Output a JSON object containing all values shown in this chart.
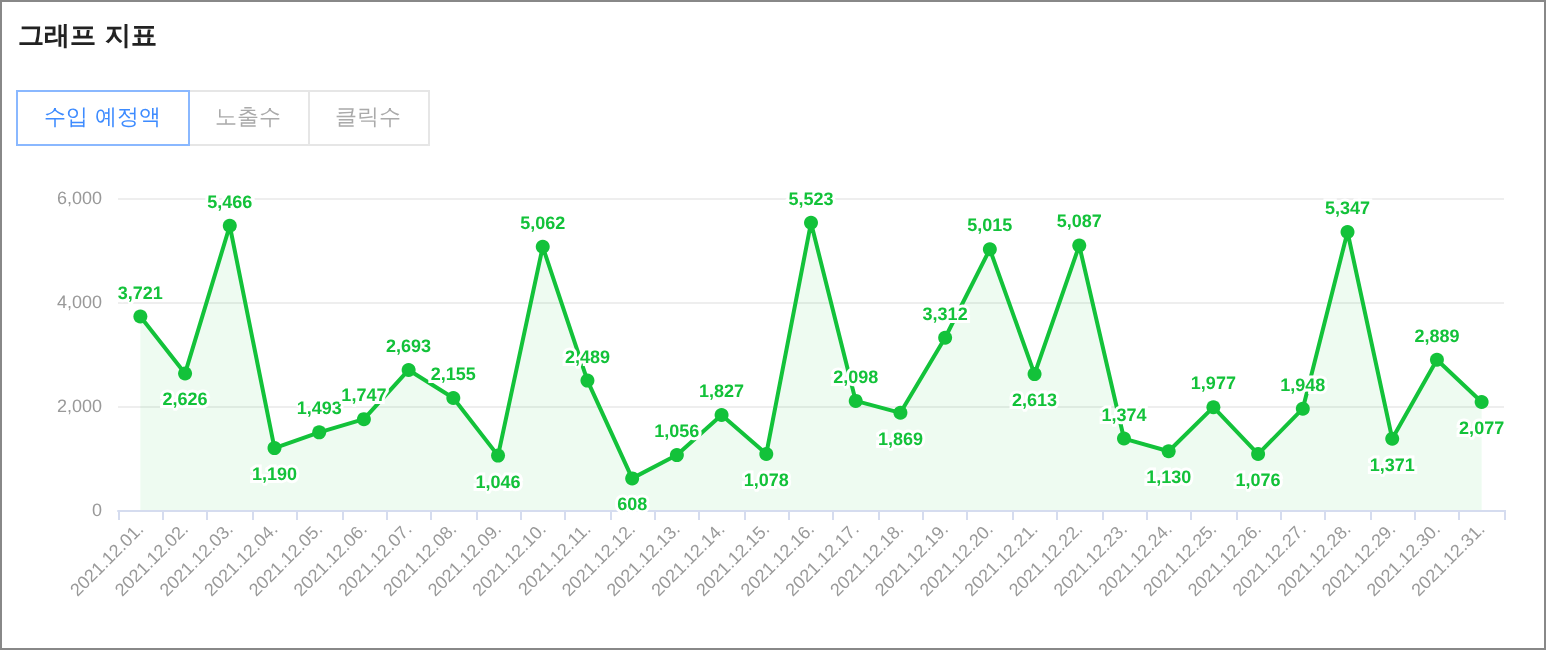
{
  "chart_data": {
    "type": "area",
    "title": "그래프 지표",
    "annotations": [
      "수입 예정액",
      "노출수",
      "클릭수"
    ],
    "categories": [
      "2021.12.01.",
      "2021.12.02.",
      "2021.12.03.",
      "2021.12.04.",
      "2021.12.05.",
      "2021.12.06.",
      "2021.12.07.",
      "2021.12.08.",
      "2021.12.09.",
      "2021.12.10.",
      "2021.12.11.",
      "2021.12.12.",
      "2021.12.13.",
      "2021.12.14.",
      "2021.12.15.",
      "2021.12.16.",
      "2021.12.17.",
      "2021.12.18.",
      "2021.12.19.",
      "2021.12.20.",
      "2021.12.21.",
      "2021.12.22.",
      "2021.12.23.",
      "2021.12.24.",
      "2021.12.25.",
      "2021.12.26.",
      "2021.12.27.",
      "2021.12.28.",
      "2021.12.29.",
      "2021.12.30.",
      "2021.12.31."
    ],
    "series": [
      {
        "color": "#13c23a",
        "values": [
          3721,
          2626,
          5466,
          1190,
          1493,
          1747,
          2693,
          2155,
          1046,
          5062,
          2489,
          608,
          1056,
          1827,
          1078,
          5523,
          2098,
          1869,
          3312,
          5015,
          2613,
          5087,
          1374,
          1130,
          1977,
          1076,
          1948,
          5347,
          1371,
          2889,
          2077
        ],
        "value_labels": [
          "3,721",
          "2,626",
          "5,466",
          "1,190",
          "1,493",
          "1,747",
          "2,693",
          "2,155",
          "1,046",
          "5,062",
          "2,489",
          "608",
          "1,056",
          "1,827",
          "1,078",
          "5,523",
          "2,098",
          "1,869",
          "3,312",
          "5,015",
          "2,613",
          "5,087",
          "1,374",
          "1,130",
          "1,977",
          "1,076",
          "1,948",
          "5,347",
          "1,371",
          "2,889",
          "2,077"
        ]
      }
    ],
    "ylim": [
      0,
      6000
    ],
    "yticks": [
      {
        "value": 0,
        "label": "0"
      },
      {
        "value": 2000,
        "label": "2,000"
      },
      {
        "value": 4000,
        "label": "4,000"
      },
      {
        "value": 6000,
        "label": "6,000"
      }
    ],
    "grid": "y",
    "marker": "circle"
  }
}
